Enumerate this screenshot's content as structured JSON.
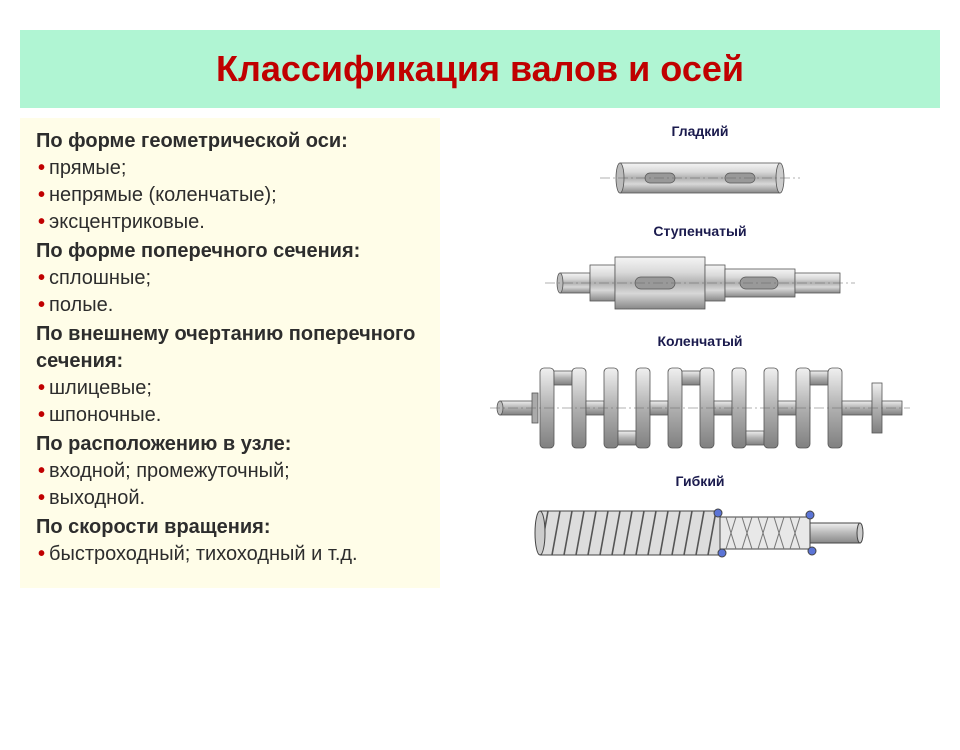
{
  "title": "Классификация валов и осей",
  "categories": [
    {
      "heading": "По форме геометрической оси:",
      "items": [
        "прямые;",
        "непрямые (коленчатые);",
        "эксцентриковые."
      ]
    },
    {
      "heading": "По форме поперечного сечения:",
      "items": [
        "сплошные;",
        "полые."
      ]
    },
    {
      "heading": "По внешнему очертанию поперечного сечения:",
      "items": [
        "шлицевые;",
        "шпоночные."
      ]
    },
    {
      "heading": "По расположению в узле:",
      "items": [
        "входной; промежуточный;",
        "выходной."
      ]
    },
    {
      "heading": "По скорости вращения:",
      "items": [
        "быстроходный; тихоходный и т.д."
      ]
    }
  ],
  "figures": [
    {
      "label": "Гладкий"
    },
    {
      "label": "Ступенчатый"
    },
    {
      "label": "Коленчатый"
    },
    {
      "label": "Гибкий"
    }
  ],
  "colors": {
    "header_bg": "#b0f5d3",
    "header_text": "#c00000",
    "left_bg": "#fffde8",
    "bullet": "#c00000",
    "fig_label": "#1a1a4d",
    "shaft_light": "#e8e8e8",
    "shaft_mid": "#b8b8b8",
    "shaft_dark": "#808080",
    "centerline": "#666666"
  }
}
